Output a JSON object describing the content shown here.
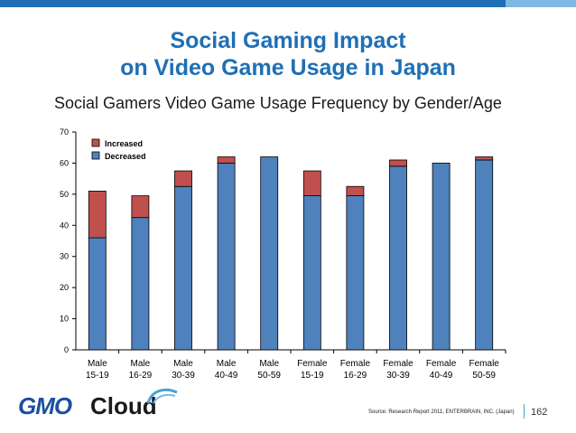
{
  "slide": {
    "title_line1": "Social Gaming Impact",
    "title_line2": "on Video Game Usage in Japan",
    "subtitle": "Social Gamers Video Game Usage Frequency by Gender/Age",
    "source": "Source: Research Report 2011, ENTERBRAIN, INC. (Japan)",
    "page_number": "162",
    "logo_text_gmo": "GMO",
    "logo_text_cloud": "Cloud",
    "colors": {
      "title": "#1f6fb5",
      "topbar_main": "#1f6fb5",
      "topbar_accent": "#7fb8e2",
      "logo_gmo": "#1c4fa0",
      "logo_cloud": "#1a1a1a"
    }
  },
  "chart_data": {
    "type": "bar",
    "stacked": true,
    "categories": [
      [
        "Male",
        "15-19"
      ],
      [
        "Male",
        "16-29"
      ],
      [
        "Male",
        "30-39"
      ],
      [
        "Male",
        "40-49"
      ],
      [
        "Male",
        "50-59"
      ],
      [
        "Female",
        "15-19"
      ],
      [
        "Female",
        "16-29"
      ],
      [
        "Female",
        "30-39"
      ],
      [
        "Female",
        "40-49"
      ],
      [
        "Female",
        "50-59"
      ]
    ],
    "series": [
      {
        "name": "Decreased",
        "color": "#4f81bd",
        "values": [
          36,
          42.5,
          52.5,
          60,
          62,
          49.5,
          49.5,
          59,
          60,
          61
        ]
      },
      {
        "name": "Increased",
        "color": "#c0504d",
        "values": [
          15,
          7,
          5,
          2,
          0,
          8,
          3,
          2,
          0,
          1
        ]
      }
    ],
    "ylim": [
      0,
      70
    ],
    "yticks": [
      0,
      10,
      20,
      30,
      40,
      50,
      60,
      70
    ],
    "legend": {
      "position": "top-left",
      "order": [
        "Increased",
        "Decreased"
      ]
    },
    "grid": false
  }
}
